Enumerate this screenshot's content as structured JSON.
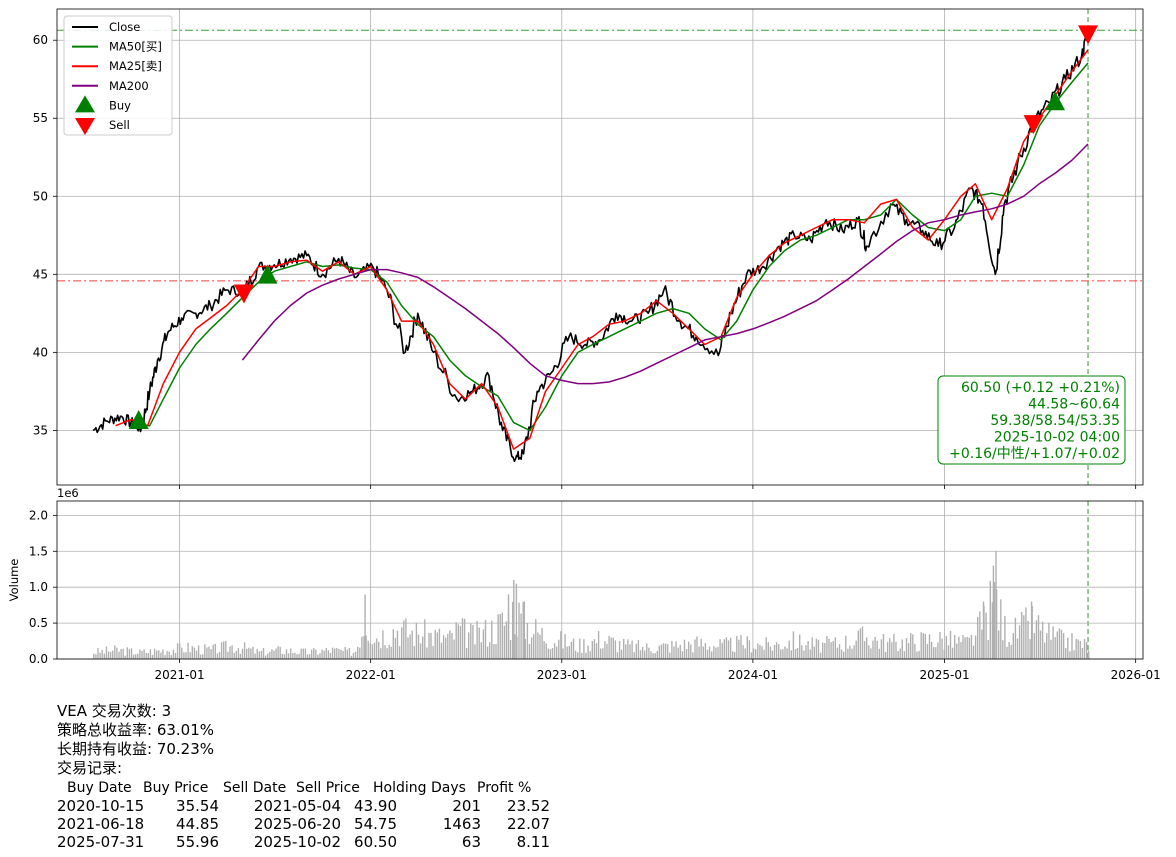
{
  "chart_data": [
    {
      "type": "line",
      "panel": "price",
      "ylim": [
        31.5,
        62.0
      ],
      "yticks": [
        35,
        40,
        45,
        50,
        55,
        60
      ],
      "grid": true,
      "legend_placement": "top-left",
      "legend": [
        {
          "label": "Close",
          "color": "#000000",
          "kind": "line"
        },
        {
          "label": "MA50[买]",
          "color": "#008000",
          "kind": "line"
        },
        {
          "label": "MA25[卖]",
          "color": "#ff0000",
          "kind": "line"
        },
        {
          "label": "MA200",
          "color": "#800080",
          "kind": "line"
        },
        {
          "label": "Buy",
          "color": "#008000",
          "kind": "triangle-up"
        },
        {
          "label": "Sell",
          "color": "#ff0000",
          "kind": "triangle-down"
        }
      ],
      "series": [
        {
          "name": "Close",
          "color": "#000000",
          "dates": [
            "2020-07-20",
            "2020-08-15",
            "2020-09-10",
            "2020-10-05",
            "2020-10-20",
            "2020-11-05",
            "2020-11-20",
            "2020-12-10",
            "2021-01-05",
            "2021-02-01",
            "2021-03-01",
            "2021-04-01",
            "2021-05-04",
            "2021-06-01",
            "2021-07-01",
            "2021-08-01",
            "2021-09-01",
            "2021-10-01",
            "2021-11-01",
            "2021-12-01",
            "2022-01-05",
            "2022-02-01",
            "2022-03-08",
            "2022-04-01",
            "2022-05-01",
            "2022-06-15",
            "2022-07-15",
            "2022-08-15",
            "2022-09-10",
            "2022-10-05",
            "2022-10-20",
            "2022-11-15",
            "2022-12-15",
            "2023-01-15",
            "2023-02-15",
            "2023-03-15",
            "2023-04-15",
            "2023-05-15",
            "2023-06-15",
            "2023-07-15",
            "2023-08-15",
            "2023-09-15",
            "2023-10-27",
            "2023-11-20",
            "2023-12-20",
            "2024-01-20",
            "2024-02-20",
            "2024-03-20",
            "2024-04-20",
            "2024-05-20",
            "2024-06-20",
            "2024-07-20",
            "2024-08-05",
            "2024-09-20",
            "2024-10-20",
            "2024-11-20",
            "2024-12-20",
            "2025-01-20",
            "2025-02-20",
            "2025-03-15",
            "2025-04-08",
            "2025-04-25",
            "2025-05-20",
            "2025-06-20",
            "2025-07-20",
            "2025-08-20",
            "2025-09-20",
            "2025-10-02"
          ],
          "values": [
            35.0,
            35.6,
            35.9,
            35.4,
            35.1,
            37.5,
            39.5,
            41.3,
            42.2,
            42.5,
            43.0,
            44.0,
            43.9,
            45.5,
            45.6,
            46.0,
            46.2,
            45.0,
            46.0,
            44.8,
            45.5,
            44.0,
            40.0,
            42.5,
            40.0,
            37.0,
            37.5,
            38.5,
            35.0,
            33.2,
            33.5,
            37.5,
            38.8,
            41.0,
            40.5,
            40.8,
            42.5,
            42.0,
            42.5,
            44.0,
            42.0,
            41.0,
            39.8,
            42.5,
            45.0,
            45.5,
            46.8,
            47.5,
            47.2,
            48.5,
            47.8,
            48.5,
            46.8,
            49.5,
            48.5,
            47.8,
            46.8,
            48.0,
            50.5,
            49.5,
            45.0,
            49.5,
            52.0,
            54.75,
            56.0,
            57.5,
            59.0,
            60.5
          ]
        },
        {
          "name": "MA50[买]",
          "color": "#008000",
          "dates": [
            "2020-10-01",
            "2020-11-05",
            "2020-12-01",
            "2021-01-01",
            "2021-02-01",
            "2021-03-01",
            "2021-04-01",
            "2021-05-01",
            "2021-06-01",
            "2021-07-01",
            "2021-08-01",
            "2021-09-01",
            "2021-10-01",
            "2021-11-01",
            "2021-12-01",
            "2022-01-01",
            "2022-02-01",
            "2022-03-01",
            "2022-04-01",
            "2022-05-01",
            "2022-06-01",
            "2022-07-01",
            "2022-08-01",
            "2022-09-01",
            "2022-10-01",
            "2022-11-01",
            "2022-12-01",
            "2023-01-01",
            "2023-02-01",
            "2023-03-01",
            "2023-04-01",
            "2023-05-01",
            "2023-06-01",
            "2023-07-01",
            "2023-08-01",
            "2023-09-01",
            "2023-10-01",
            "2023-11-01",
            "2023-12-01",
            "2024-01-01",
            "2024-02-01",
            "2024-03-01",
            "2024-04-01",
            "2024-05-01",
            "2024-06-01",
            "2024-07-01",
            "2024-08-01",
            "2024-09-01",
            "2024-10-01",
            "2024-11-01",
            "2024-12-01",
            "2025-01-01",
            "2025-02-01",
            "2025-03-01",
            "2025-04-01",
            "2025-05-01",
            "2025-06-01",
            "2025-07-01",
            "2025-08-01",
            "2025-09-01",
            "2025-10-02"
          ],
          "values": [
            35.4,
            35.3,
            37.0,
            39.0,
            40.5,
            41.5,
            42.5,
            43.5,
            44.5,
            45.2,
            45.5,
            45.8,
            45.5,
            45.6,
            45.4,
            45.3,
            44.5,
            43.0,
            41.8,
            41.0,
            39.5,
            38.5,
            37.8,
            37.2,
            35.5,
            35.0,
            36.5,
            38.5,
            40.0,
            40.5,
            41.0,
            41.5,
            42.0,
            42.5,
            42.8,
            42.5,
            41.5,
            40.8,
            42.0,
            44.0,
            45.5,
            46.5,
            47.2,
            47.5,
            48.0,
            48.5,
            48.5,
            48.8,
            49.8,
            48.8,
            48.0,
            47.8,
            48.5,
            50.0,
            50.2,
            50.0,
            52.0,
            54.5,
            56.0,
            57.3,
            58.54
          ]
        },
        {
          "name": "MA25[卖]",
          "color": "#ff0000",
          "dates": [
            "2020-09-01",
            "2020-10-01",
            "2020-11-01",
            "2020-12-01",
            "2021-01-01",
            "2021-02-01",
            "2021-03-01",
            "2021-04-01",
            "2021-05-01",
            "2021-06-01",
            "2021-07-01",
            "2021-08-01",
            "2021-09-01",
            "2021-10-01",
            "2021-11-01",
            "2021-12-01",
            "2022-01-01",
            "2022-02-01",
            "2022-03-01",
            "2022-04-01",
            "2022-05-01",
            "2022-06-01",
            "2022-07-01",
            "2022-08-01",
            "2022-09-01",
            "2022-10-01",
            "2022-11-01",
            "2022-12-01",
            "2023-01-01",
            "2023-02-01",
            "2023-03-01",
            "2023-04-01",
            "2023-05-01",
            "2023-06-01",
            "2023-07-01",
            "2023-08-01",
            "2023-09-01",
            "2023-10-01",
            "2023-11-01",
            "2023-12-01",
            "2024-01-01",
            "2024-02-01",
            "2024-03-01",
            "2024-04-01",
            "2024-05-01",
            "2024-06-01",
            "2024-07-01",
            "2024-08-01",
            "2024-09-01",
            "2024-10-01",
            "2024-11-01",
            "2024-12-01",
            "2025-01-01",
            "2025-02-01",
            "2025-03-01",
            "2025-04-01",
            "2025-05-01",
            "2025-06-01",
            "2025-07-01",
            "2025-08-01",
            "2025-09-01",
            "2025-10-02"
          ],
          "values": [
            35.3,
            35.7,
            35.3,
            38.0,
            40.0,
            41.5,
            42.2,
            43.0,
            44.0,
            45.5,
            45.5,
            45.8,
            45.9,
            45.2,
            45.8,
            45.0,
            45.5,
            44.0,
            42.0,
            42.0,
            40.5,
            38.0,
            37.0,
            38.0,
            36.5,
            33.8,
            34.5,
            37.5,
            39.0,
            40.5,
            41.0,
            41.8,
            42.0,
            42.5,
            43.3,
            42.5,
            41.5,
            40.5,
            41.0,
            43.5,
            45.0,
            46.2,
            47.0,
            47.5,
            48.0,
            48.5,
            48.5,
            48.3,
            49.5,
            49.8,
            48.0,
            47.2,
            48.5,
            50.0,
            50.8,
            48.5,
            50.5,
            53.5,
            55.0,
            56.5,
            58.0,
            59.38
          ]
        },
        {
          "name": "MA200",
          "color": "#800080",
          "dates": [
            "2021-05-01",
            "2021-06-01",
            "2021-07-01",
            "2021-08-01",
            "2021-09-01",
            "2021-10-01",
            "2021-11-01",
            "2021-12-01",
            "2022-01-01",
            "2022-02-01",
            "2022-03-01",
            "2022-04-01",
            "2022-05-01",
            "2022-06-01",
            "2022-07-01",
            "2022-08-01",
            "2022-09-01",
            "2022-10-01",
            "2022-11-01",
            "2022-12-01",
            "2023-01-01",
            "2023-02-01",
            "2023-03-01",
            "2023-04-01",
            "2023-05-01",
            "2023-06-01",
            "2023-07-01",
            "2023-08-01",
            "2023-09-01",
            "2023-10-01",
            "2023-11-01",
            "2023-12-01",
            "2024-01-01",
            "2024-02-01",
            "2024-03-01",
            "2024-04-01",
            "2024-05-01",
            "2024-06-01",
            "2024-07-01",
            "2024-08-01",
            "2024-09-01",
            "2024-10-01",
            "2024-11-01",
            "2024-12-01",
            "2025-01-01",
            "2025-02-01",
            "2025-03-01",
            "2025-04-01",
            "2025-05-01",
            "2025-06-01",
            "2025-07-01",
            "2025-08-01",
            "2025-09-01",
            "2025-10-02"
          ],
          "values": [
            39.5,
            40.8,
            42.0,
            43.0,
            43.8,
            44.3,
            44.7,
            45.0,
            45.3,
            45.3,
            45.1,
            44.8,
            44.2,
            43.5,
            42.8,
            42.0,
            41.2,
            40.3,
            39.3,
            38.5,
            38.2,
            38.0,
            38.0,
            38.1,
            38.4,
            38.8,
            39.3,
            39.8,
            40.3,
            40.8,
            41.0,
            41.2,
            41.5,
            41.9,
            42.3,
            42.8,
            43.3,
            44.0,
            44.7,
            45.5,
            46.3,
            47.1,
            47.8,
            48.3,
            48.5,
            48.8,
            49.0,
            49.2,
            49.5,
            50.0,
            50.8,
            51.5,
            52.3,
            53.35
          ]
        }
      ],
      "markers": [
        {
          "kind": "Buy",
          "date": "2020-10-15",
          "price": 35.54
        },
        {
          "kind": "Sell",
          "date": "2021-05-04",
          "price": 43.9
        },
        {
          "kind": "Buy",
          "date": "2021-06-18",
          "price": 44.85
        },
        {
          "kind": "Sell",
          "date": "2025-06-20",
          "price": 54.75
        },
        {
          "kind": "Buy",
          "date": "2025-07-31",
          "price": 55.96
        },
        {
          "kind": "Sell",
          "date": "2025-10-02",
          "price": 60.5
        }
      ],
      "hlines": [
        {
          "value": 60.64,
          "color": "#008000"
        },
        {
          "value": 44.58,
          "color": "#ff0000"
        }
      ],
      "vline": {
        "date": "2025-10-02",
        "color": "#008000"
      },
      "info_box": {
        "lines": [
          "60.50 (+0.12 +0.21%)",
          "44.58~60.64",
          "59.38/58.54/53.35",
          "2025-10-02 04:00",
          "+0.16/中性/+1.07/+0.02"
        ],
        "color": "#008000"
      }
    },
    {
      "type": "bar",
      "panel": "volume",
      "ylabel": "Volume",
      "offset_label": "1e6",
      "ylim": [
        0,
        2.2
      ],
      "yticks": [
        "0.0",
        "0.5",
        "1.0",
        "1.5",
        "2.0"
      ],
      "grid": true,
      "bar_color": "#b0b0b0",
      "dates": [
        "2020-07-20",
        "2020-09-01",
        "2020-10-15",
        "2020-12-01",
        "2021-01-15",
        "2021-03-01",
        "2021-04-15",
        "2021-06-01",
        "2021-07-15",
        "2021-09-01",
        "2021-10-15",
        "2021-12-01",
        "2021-12-20",
        "2022-01-10",
        "2022-02-01",
        "2022-02-25",
        "2022-03-10",
        "2022-04-15",
        "2022-06-01",
        "2022-06-16",
        "2022-07-15",
        "2022-08-25",
        "2022-09-20",
        "2022-09-30",
        "2022-10-05",
        "2022-10-20",
        "2022-11-15",
        "2022-12-15",
        "2023-02-01",
        "2023-03-15",
        "2023-05-01",
        "2023-06-15",
        "2023-08-01",
        "2023-09-15",
        "2023-11-01",
        "2023-12-15",
        "2024-02-01",
        "2024-03-15",
        "2024-05-01",
        "2024-06-15",
        "2024-08-05",
        "2024-09-15",
        "2024-11-01",
        "2024-12-15",
        "2025-01-15",
        "2025-02-15",
        "2025-03-15",
        "2025-04-03",
        "2025-04-08",
        "2025-04-20",
        "2025-05-15",
        "2025-06-15",
        "2025-07-15",
        "2025-08-15",
        "2025-09-15",
        "2025-10-02"
      ],
      "values": [
        0.15,
        0.2,
        0.15,
        0.2,
        0.25,
        0.2,
        0.3,
        0.15,
        0.2,
        0.15,
        0.2,
        0.15,
        0.9,
        0.5,
        0.6,
        0.7,
        0.6,
        0.55,
        0.45,
        0.65,
        0.5,
        0.7,
        0.9,
        1.1,
        1.05,
        0.8,
        0.6,
        0.45,
        0.3,
        0.45,
        0.3,
        0.25,
        0.3,
        0.35,
        0.3,
        0.35,
        0.3,
        0.4,
        0.3,
        0.35,
        0.5,
        0.35,
        0.4,
        0.45,
        0.4,
        0.35,
        0.8,
        1.3,
        1.5,
        0.7,
        0.6,
        0.8,
        0.55,
        0.4,
        0.35,
        0.3
      ]
    }
  ],
  "x_axis": {
    "ticks": [
      {
        "date": "2021-01-01",
        "label": "2021-01"
      },
      {
        "date": "2022-01-01",
        "label": "2022-01"
      },
      {
        "date": "2023-01-01",
        "label": "2023-01"
      },
      {
        "date": "2024-01-01",
        "label": "2024-01"
      },
      {
        "date": "2025-01-01",
        "label": "2025-01"
      },
      {
        "date": "2026-01-01",
        "label": "2026-01"
      }
    ]
  },
  "summary": {
    "trades_line": "VEA 交易次数: 3",
    "strategy_return": "策略总收益率: 63.01%",
    "hold_return": "长期持有收益: 70.23%",
    "records_title": "交易记录:"
  },
  "trade_table": {
    "columns": [
      "Buy Date",
      "Buy Price",
      "Sell Date",
      "Sell Price",
      "Holding Days",
      "Profit %"
    ],
    "rows": [
      [
        "2020-10-15",
        "35.54",
        "2021-05-04",
        "43.90",
        "201",
        "23.52"
      ],
      [
        "2021-06-18",
        "44.85",
        "2025-06-20",
        "54.75",
        "1463",
        "22.07"
      ],
      [
        "2025-07-31",
        "55.96",
        "2025-10-02",
        "60.50",
        "63",
        "8.11"
      ]
    ]
  }
}
